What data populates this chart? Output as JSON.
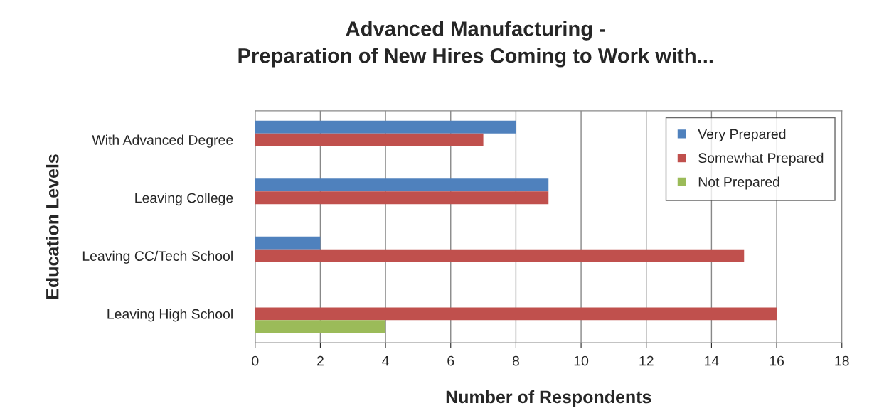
{
  "chart_data": {
    "type": "bar",
    "orientation": "horizontal",
    "title": "Advanced Manufacturing -\nPreparation of New Hires Coming to Work with...",
    "xlabel": "Number of Respondents",
    "ylabel": "Education Levels",
    "categories": [
      "With Advanced Degree",
      "Leaving College",
      "Leaving CC/Tech School",
      "Leaving High School"
    ],
    "series": [
      {
        "name": "Very Prepared",
        "color": "#4f81bd",
        "values": [
          8,
          9,
          2,
          null
        ]
      },
      {
        "name": "Somewhat Prepared",
        "color": "#c0504d",
        "values": [
          7,
          9,
          15,
          16
        ]
      },
      {
        "name": "Not Prepared",
        "color": "#9bbb59",
        "values": [
          null,
          null,
          null,
          4
        ]
      }
    ],
    "xlim": [
      0,
      18
    ],
    "xticks": [
      0,
      2,
      4,
      6,
      8,
      10,
      12,
      14,
      16,
      18
    ],
    "grid": "x",
    "legend": "top right"
  }
}
